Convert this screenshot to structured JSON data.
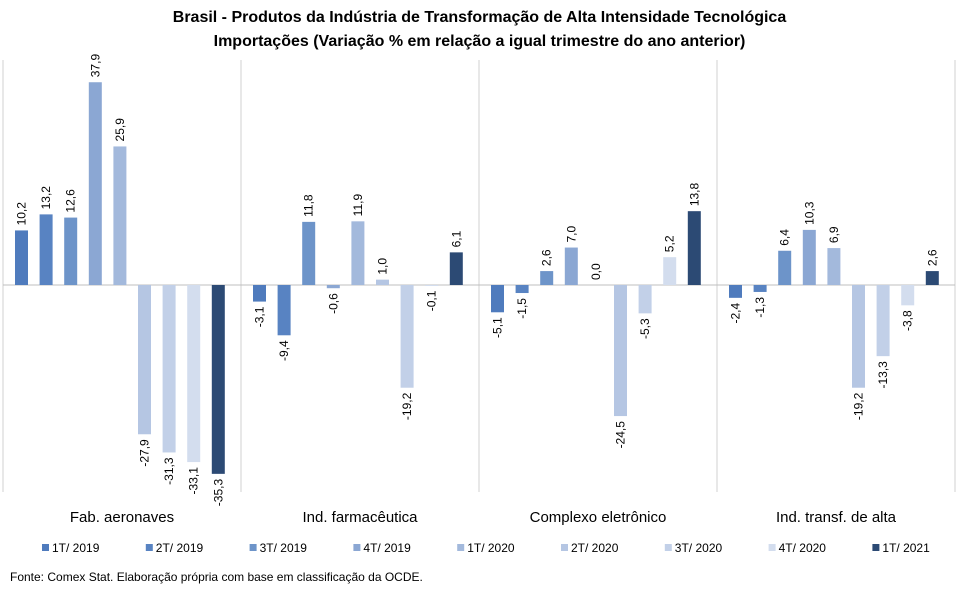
{
  "title_line1": "Brasil - Produtos da Indústria de Transformação  de Alta Intensidade Tecnológica",
  "title_line2": "Importações (Variação % em relação a igual trimestre do ano anterior)",
  "source": "Fonte: Comex Stat. Elaboração própria com base em classificação da OCDE.",
  "chart_data": {
    "type": "bar",
    "categories": [
      "Fab. aeronaves",
      "Ind. farmacêutica",
      "Complexo eletrônico",
      "Ind. transf. de alta"
    ],
    "ylim": [
      -38,
      43
    ],
    "legend_position": "bottom",
    "series": [
      {
        "name": "1T/ 2019",
        "color": "#4F7BBD",
        "values": [
          10.2,
          -3.1,
          -5.1,
          -2.4
        ],
        "labels": [
          "10,2",
          "-3,1",
          "-5,1",
          "-2,4"
        ]
      },
      {
        "name": "2T/ 2019",
        "color": "#5883C2",
        "values": [
          13.2,
          -9.4,
          -1.5,
          -1.3
        ],
        "labels": [
          "13,2",
          "-9,4",
          "-1,5",
          "-1,3"
        ]
      },
      {
        "name": "3T/ 2019",
        "color": "#6D94C9",
        "values": [
          12.6,
          11.8,
          2.6,
          6.4
        ],
        "labels": [
          "12,6",
          "11,8",
          "2,6",
          "6,4"
        ]
      },
      {
        "name": "4T/ 2019",
        "color": "#8BA7D3",
        "values": [
          37.9,
          -0.6,
          7.0,
          10.3
        ],
        "labels": [
          "37,9",
          "-0,6",
          "7,0",
          "10,3"
        ]
      },
      {
        "name": "1T/ 2020",
        "color": "#A3B9DC",
        "values": [
          25.9,
          11.9,
          0.0,
          6.9
        ],
        "labels": [
          "25,9",
          "11,9",
          "0,0",
          "6,9"
        ]
      },
      {
        "name": "2T/ 2020",
        "color": "#B5C6E3",
        "values": [
          -27.9,
          1.0,
          -24.5,
          -19.2
        ],
        "labels": [
          "-27,9",
          "1,0",
          "-24,5",
          "-19,2"
        ]
      },
      {
        "name": "3T/ 2020",
        "color": "#C2D0E8",
        "values": [
          -31.3,
          -19.2,
          -5.3,
          -13.3
        ],
        "labels": [
          "-31,3",
          "-19,2",
          "-5,3",
          "-13,3"
        ]
      },
      {
        "name": "4T/ 2020",
        "color": "#D3DDEE",
        "values": [
          -33.1,
          -0.1,
          5.2,
          -3.8
        ],
        "labels": [
          "-33,1",
          "-0,1",
          "5,2",
          "-3,8"
        ]
      },
      {
        "name": "1T/ 2021",
        "color": "#2C4A74",
        "values": [
          -35.3,
          6.1,
          13.8,
          2.6
        ],
        "labels": [
          "-35,3",
          "6,1",
          "13,8",
          "2,6"
        ]
      }
    ]
  }
}
